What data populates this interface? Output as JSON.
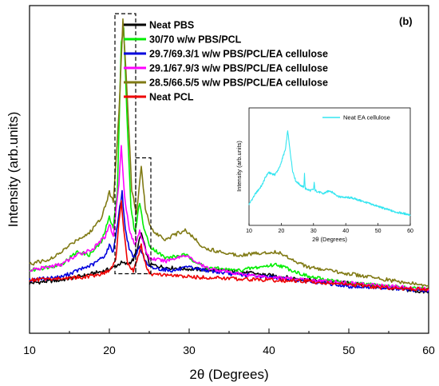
{
  "chart_data": [
    {
      "type": "line",
      "panel_label": "(b)",
      "xlabel": "2θ (Degrees)",
      "ylabel": "Intensity (arb.units)",
      "xlim": [
        10,
        60
      ],
      "x_ticks": [
        10,
        20,
        30,
        40,
        50,
        60
      ],
      "y_ticks_labeled": false,
      "legend_position": "top-center",
      "series": [
        {
          "name": "Neat PBS",
          "color": "#000000",
          "points": [
            [
              10,
              0.16
            ],
            [
              14,
              0.17
            ],
            [
              17,
              0.185
            ],
            [
              19.5,
              0.2
            ],
            [
              20.5,
              0.21
            ],
            [
              21.5,
              0.225
            ],
            [
              22.3,
              0.22
            ],
            [
              23.0,
              0.235
            ],
            [
              23.5,
              0.27
            ],
            [
              24.0,
              0.32
            ],
            [
              24.5,
              0.27
            ],
            [
              25,
              0.22
            ],
            [
              27,
              0.21
            ],
            [
              30,
              0.205
            ],
            [
              35,
              0.2
            ],
            [
              40,
              0.185
            ],
            [
              45,
              0.17
            ],
            [
              50,
              0.16
            ],
            [
              55,
              0.145
            ],
            [
              60,
              0.13
            ]
          ]
        },
        {
          "name": "30/70 w/w PBS/PCL",
          "color": "#00ee00",
          "points": [
            [
              10,
              0.2
            ],
            [
              14,
              0.22
            ],
            [
              16,
              0.26
            ],
            [
              17.5,
              0.25
            ],
            [
              19,
              0.29
            ],
            [
              20,
              0.37
            ],
            [
              20.5,
              0.34
            ],
            [
              21,
              0.45
            ],
            [
              21.5,
              0.93
            ],
            [
              21.8,
              0.98
            ],
            [
              22.2,
              0.7
            ],
            [
              22.7,
              0.4
            ],
            [
              23.2,
              0.32
            ],
            [
              23.8,
              0.42
            ],
            [
              24.2,
              0.35
            ],
            [
              25,
              0.28
            ],
            [
              27,
              0.24
            ],
            [
              29.5,
              0.25
            ],
            [
              32,
              0.21
            ],
            [
              36,
              0.2
            ],
            [
              41,
              0.22
            ],
            [
              45,
              0.18
            ],
            [
              50,
              0.16
            ],
            [
              55,
              0.15
            ],
            [
              60,
              0.14
            ]
          ]
        },
        {
          "name": "29.7/69.3/1 w/w PBS/PCL/EA cellulose",
          "color": "#0000dd",
          "points": [
            [
              10,
              0.17
            ],
            [
              14,
              0.18
            ],
            [
              16,
              0.2
            ],
            [
              18,
              0.22
            ],
            [
              19.5,
              0.25
            ],
            [
              20,
              0.28
            ],
            [
              20.5,
              0.26
            ],
            [
              21.3,
              0.4
            ],
            [
              21.6,
              0.45
            ],
            [
              22,
              0.33
            ],
            [
              22.6,
              0.26
            ],
            [
              23.2,
              0.24
            ],
            [
              23.8,
              0.28
            ],
            [
              24.3,
              0.24
            ],
            [
              25,
              0.21
            ],
            [
              28,
              0.2
            ],
            [
              30,
              0.21
            ],
            [
              35,
              0.19
            ],
            [
              40,
              0.18
            ],
            [
              45,
              0.165
            ],
            [
              50,
              0.15
            ],
            [
              55,
              0.145
            ],
            [
              60,
              0.135
            ]
          ]
        },
        {
          "name": "29.1/67.9/3 w/w PBS/PCL/EA cellulose",
          "color": "#ff00ff",
          "points": [
            [
              10,
              0.2
            ],
            [
              14,
              0.22
            ],
            [
              16,
              0.25
            ],
            [
              18,
              0.27
            ],
            [
              19.5,
              0.31
            ],
            [
              20,
              0.35
            ],
            [
              20.5,
              0.31
            ],
            [
              21.2,
              0.48
            ],
            [
              21.5,
              0.6
            ],
            [
              21.9,
              0.44
            ],
            [
              22.5,
              0.33
            ],
            [
              23.2,
              0.28
            ],
            [
              23.8,
              0.33
            ],
            [
              24.3,
              0.28
            ],
            [
              25,
              0.24
            ],
            [
              27,
              0.23
            ],
            [
              29.5,
              0.25
            ],
            [
              32,
              0.21
            ],
            [
              36,
              0.19
            ],
            [
              40,
              0.18
            ],
            [
              45,
              0.17
            ],
            [
              50,
              0.16
            ],
            [
              55,
              0.15
            ],
            [
              60,
              0.14
            ]
          ]
        },
        {
          "name": "28.5/66.5/5 w/w PBS/PCL/EA cellulose",
          "color": "#807a14",
          "points": [
            [
              10,
              0.22
            ],
            [
              13,
              0.24
            ],
            [
              16,
              0.3
            ],
            [
              17.5,
              0.32
            ],
            [
              19,
              0.37
            ],
            [
              20,
              0.45
            ],
            [
              20.5,
              0.42
            ],
            [
              21.2,
              0.7
            ],
            [
              21.7,
              1.0
            ],
            [
              22.2,
              0.78
            ],
            [
              22.8,
              0.46
            ],
            [
              23.4,
              0.38
            ],
            [
              24,
              0.53
            ],
            [
              24.5,
              0.4
            ],
            [
              25.3,
              0.33
            ],
            [
              27,
              0.3
            ],
            [
              29.5,
              0.33
            ],
            [
              32,
              0.27
            ],
            [
              36,
              0.25
            ],
            [
              41,
              0.26
            ],
            [
              45,
              0.21
            ],
            [
              50,
              0.19
            ],
            [
              55,
              0.17
            ],
            [
              60,
              0.15
            ]
          ]
        },
        {
          "name": "Neat PCL",
          "color": "#ee0000",
          "points": [
            [
              10,
              0.17
            ],
            [
              14,
              0.175
            ],
            [
              17,
              0.18
            ],
            [
              19,
              0.19
            ],
            [
              20,
              0.2
            ],
            [
              20.8,
              0.23
            ],
            [
              21.2,
              0.36
            ],
            [
              21.5,
              0.42
            ],
            [
              21.8,
              0.33
            ],
            [
              22.3,
              0.22
            ],
            [
              23,
              0.2
            ],
            [
              23.7,
              0.25
            ],
            [
              24,
              0.28
            ],
            [
              24.4,
              0.23
            ],
            [
              25,
              0.19
            ],
            [
              30,
              0.18
            ],
            [
              35,
              0.175
            ],
            [
              40,
              0.17
            ],
            [
              45,
              0.165
            ],
            [
              50,
              0.155
            ],
            [
              55,
              0.145
            ],
            [
              60,
              0.14
            ]
          ]
        }
      ],
      "annotation_boxes": [
        {
          "x_range": [
            20.7,
            23.3
          ],
          "y_range": [
            0.19,
            1.02
          ]
        },
        {
          "x_range": [
            23.3,
            25.2
          ],
          "y_range": [
            0.19,
            0.56
          ]
        }
      ]
    },
    {
      "type": "line",
      "inset": true,
      "xlabel": "2θ (Degrees)",
      "ylabel": "Intensity (arb.units)",
      "xlim": [
        10,
        60
      ],
      "x_ticks": [
        10,
        20,
        30,
        40,
        50,
        60
      ],
      "legend_position": "top-right",
      "series": [
        {
          "name": "Neat EA cellulose",
          "color": "#33e5f0",
          "points": [
            [
              10,
              0.2
            ],
            [
              12,
              0.3
            ],
            [
              14,
              0.38
            ],
            [
              15,
              0.45
            ],
            [
              16,
              0.5
            ],
            [
              18,
              0.48
            ],
            [
              19.5,
              0.55
            ],
            [
              20.5,
              0.65
            ],
            [
              21.3,
              0.72
            ],
            [
              22,
              0.9
            ],
            [
              22.5,
              0.76
            ],
            [
              23.5,
              0.52
            ],
            [
              24.5,
              0.42
            ],
            [
              26,
              0.38
            ],
            [
              27,
              0.36
            ],
            [
              27.2,
              0.5
            ],
            [
              27.4,
              0.35
            ],
            [
              29,
              0.33
            ],
            [
              30,
              0.34
            ],
            [
              30.2,
              0.4
            ],
            [
              30.5,
              0.33
            ],
            [
              33,
              0.3
            ],
            [
              35,
              0.33
            ],
            [
              38,
              0.27
            ],
            [
              42,
              0.26
            ],
            [
              46,
              0.22
            ],
            [
              50,
              0.18
            ],
            [
              55,
              0.13
            ],
            [
              60,
              0.1
            ]
          ]
        }
      ]
    }
  ]
}
